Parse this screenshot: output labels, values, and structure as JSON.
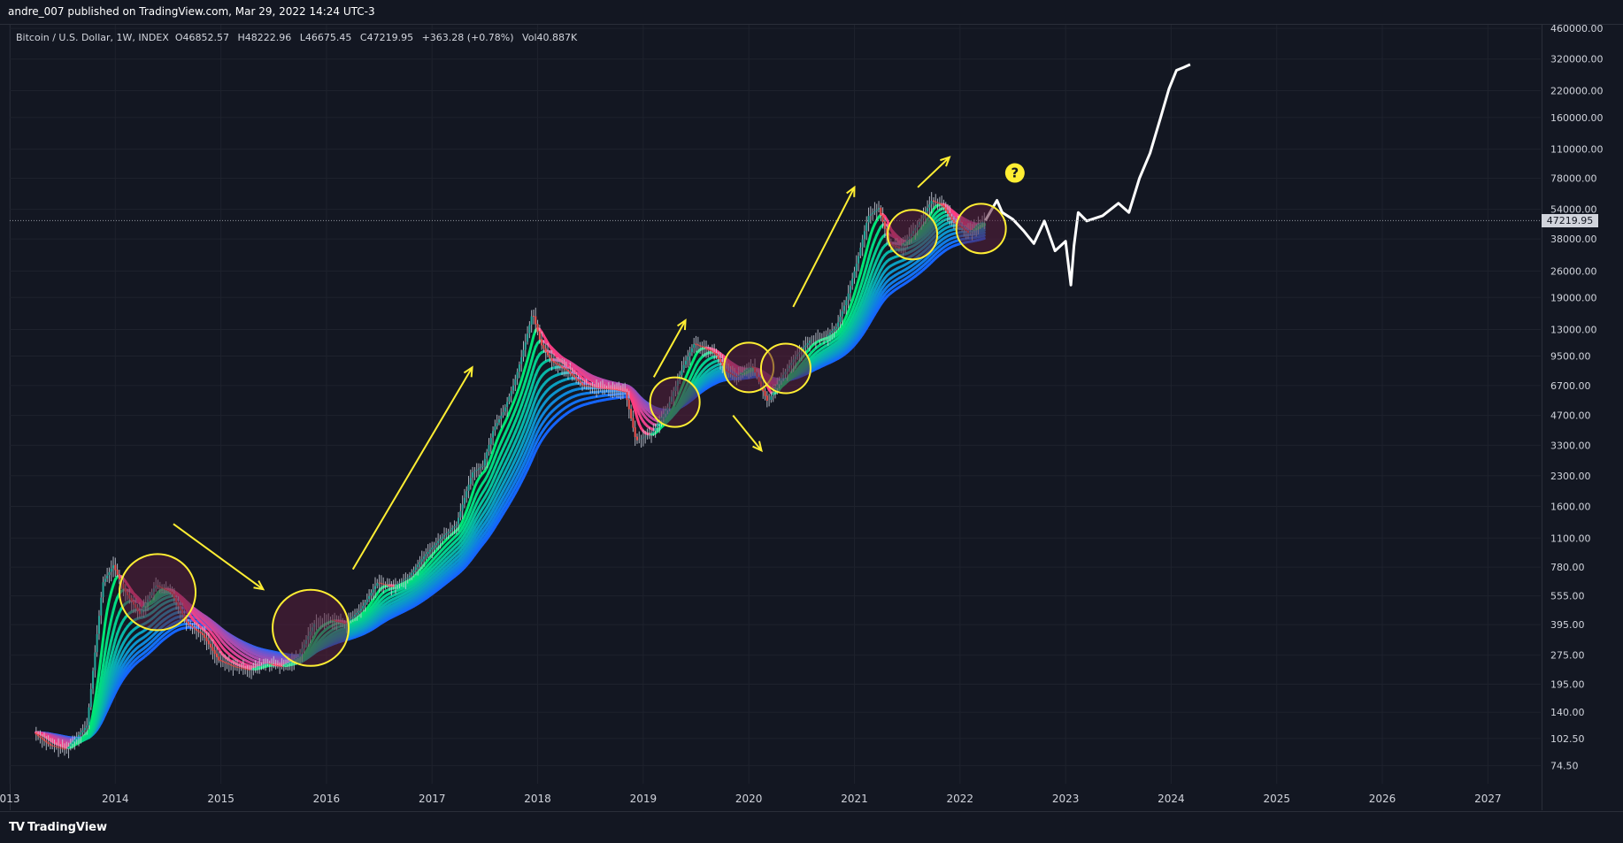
{
  "header": {
    "publish_line": "andre_007 published on TradingView.com, Mar 29, 2022 14:24 UTC-3"
  },
  "legend": {
    "symbol": "Bitcoin / U.S. Dollar, 1W, INDEX",
    "open_label": "O",
    "open": "46852.57",
    "high_label": "H",
    "high": "48222.96",
    "low_label": "L",
    "low": "46675.45",
    "close_label": "C",
    "close": "47219.95",
    "change": "+363.28 (+0.78%)",
    "vol_label": "Vol",
    "vol": "40.887K"
  },
  "footer": {
    "logo_mark": "TV",
    "logo_text": "TradingView"
  },
  "colors": {
    "background": "#131722",
    "grid": "#1e222d",
    "axis_text": "#d1d4dc",
    "annotation": "#ffee33",
    "circle_fill": "#5a1f3d",
    "projection": "#ffffff",
    "ribbon_bull_start": "#00e676",
    "ribbon_bear_start": "#ff3d7f",
    "ribbon_blue": "#1565ff"
  },
  "chart_data": {
    "type": "line",
    "scale": "log",
    "ylim": [
      60,
      480000
    ],
    "xlim": [
      2013.0,
      2027.5
    ],
    "last_price": 47219.95,
    "last_price_label": "47219.95",
    "y_ticks": [
      "460000.00",
      "320000.00",
      "220000.00",
      "160000.00",
      "110000.00",
      "78000.00",
      "54000.00",
      "38000.00",
      "26000.00",
      "19000.00",
      "13000.00",
      "9500.00",
      "6700.00",
      "4700.00",
      "3300.00",
      "2300.00",
      "1600.00",
      "1100.00",
      "780.00",
      "555.00",
      "395.00",
      "275.00",
      "195.00",
      "140.00",
      "102.50",
      "74.50"
    ],
    "y_tick_values": [
      460000,
      320000,
      220000,
      160000,
      110000,
      78000,
      54000,
      38000,
      26000,
      19000,
      13000,
      9500,
      6700,
      4700,
      3300,
      2300,
      1600,
      1100,
      780,
      555,
      395,
      275,
      195,
      140,
      102.5,
      74.5
    ],
    "x_ticks": [
      "013",
      "2014",
      "2015",
      "2016",
      "2017",
      "2018",
      "2019",
      "2020",
      "2021",
      "2022",
      "2023",
      "2024",
      "2025",
      "2026",
      "2027"
    ],
    "x_tick_values": [
      2013.0,
      2014.0,
      2015.0,
      2016.0,
      2017.0,
      2018.0,
      2019.0,
      2020.0,
      2021.0,
      2022.0,
      2023.0,
      2024.0,
      2025.0,
      2026.0,
      2027.0
    ],
    "series": [
      {
        "kind": "price",
        "x": [
          2013.25,
          2013.4,
          2013.55,
          2013.75,
          2013.9,
          2014.0,
          2014.1,
          2014.25,
          2014.4,
          2014.55,
          2014.7,
          2014.85,
          2015.0,
          2015.15,
          2015.3,
          2015.45,
          2015.6,
          2015.75,
          2015.9,
          2016.05,
          2016.2,
          2016.35,
          2016.5,
          2016.65,
          2016.8,
          2016.95,
          2017.1,
          2017.25,
          2017.4,
          2017.5,
          2017.6,
          2017.7,
          2017.8,
          2017.9,
          2017.97,
          2018.05,
          2018.15,
          2018.3,
          2018.45,
          2018.6,
          2018.75,
          2018.85,
          2018.95,
          2019.1,
          2019.25,
          2019.4,
          2019.5,
          2019.6,
          2019.7,
          2019.8,
          2019.9,
          2020.05,
          2020.2,
          2020.3,
          2020.45,
          2020.6,
          2020.75,
          2020.85,
          2020.95,
          2021.05,
          2021.15,
          2021.25,
          2021.35,
          2021.45,
          2021.55,
          2021.65,
          2021.75,
          2021.85,
          2021.95,
          2022.1,
          2022.24
        ],
        "y": [
          110,
          95,
          90,
          120,
          650,
          800,
          600,
          450,
          630,
          580,
          400,
          350,
          260,
          240,
          230,
          250,
          240,
          270,
          400,
          420,
          400,
          480,
          650,
          620,
          700,
          900,
          1100,
          1300,
          2400,
          2600,
          4000,
          5000,
          7000,
          11000,
          16000,
          11000,
          9000,
          8000,
          6700,
          6500,
          6400,
          6200,
          3500,
          3800,
          5200,
          8500,
          11000,
          10500,
          9800,
          8000,
          7400,
          8500,
          5500,
          7000,
          9300,
          11500,
          12000,
          13500,
          19000,
          30000,
          50000,
          55000,
          36000,
          34000,
          40000,
          48000,
          60000,
          57000,
          47000,
          41000,
          47219
        ]
      },
      {
        "kind": "projection",
        "x": [
          2022.24,
          2022.35,
          2022.4,
          2022.5,
          2022.6,
          2022.7,
          2022.8,
          2022.9,
          2023.0,
          2023.05,
          2023.08,
          2023.12,
          2023.2,
          2023.35,
          2023.5,
          2023.6,
          2023.7,
          2023.8,
          2023.9,
          2023.98,
          2024.05,
          2024.12,
          2024.18
        ],
        "y": [
          47219,
          60000,
          52000,
          48000,
          42000,
          36000,
          47000,
          33000,
          37000,
          22000,
          35000,
          52000,
          47000,
          50000,
          58000,
          52000,
          78000,
          105000,
          160000,
          225000,
          280000,
          290000,
          300000
        ]
      }
    ],
    "ribbon_emas": {
      "count": 12,
      "note": ""
    },
    "annotations": {
      "circles": [
        {
          "x": 2014.4,
          "y": 580
        },
        {
          "x": 2015.85,
          "y": 380
        },
        {
          "x": 2019.3,
          "y": 5500
        },
        {
          "x": 2020.0,
          "y": 8300
        },
        {
          "x": 2020.35,
          "y": 8200
        },
        {
          "x": 2021.55,
          "y": 40000
        },
        {
          "x": 2022.2,
          "y": 43000
        }
      ],
      "arrows": [
        {
          "from": [
            2014.55,
            1300
          ],
          "to": [
            2015.4,
            600
          ]
        },
        {
          "from": [
            2016.25,
            760
          ],
          "to": [
            2017.38,
            8300
          ]
        },
        {
          "from": [
            2019.1,
            7400
          ],
          "to": [
            2019.4,
            14500
          ]
        },
        {
          "from": [
            2019.85,
            4700
          ],
          "to": [
            2020.12,
            3100
          ]
        },
        {
          "from": [
            2020.42,
            17000
          ],
          "to": [
            2021.0,
            70000
          ]
        },
        {
          "from": [
            2021.6,
            70000
          ],
          "to": [
            2021.9,
            100000
          ]
        }
      ],
      "question": {
        "x": 2022.52,
        "y": 83000,
        "label": "?"
      }
    }
  }
}
